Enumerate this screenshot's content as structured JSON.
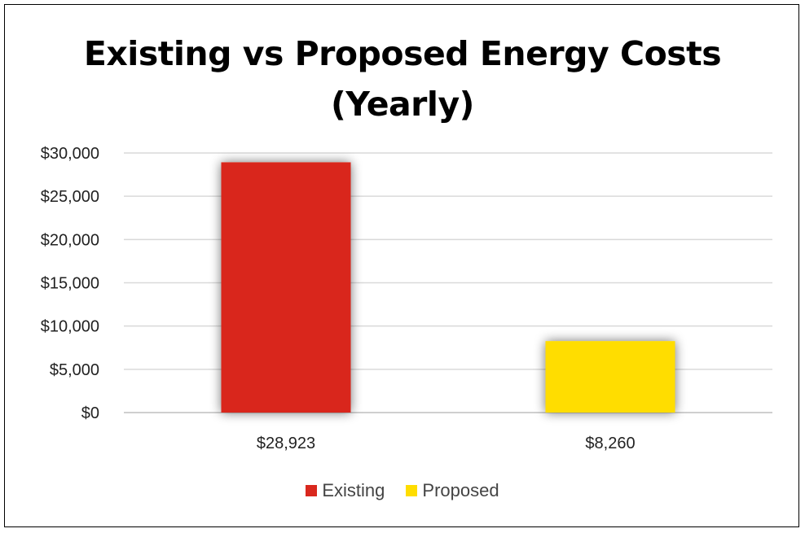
{
  "chart_data": {
    "type": "bar",
    "title_lines": [
      "Existing vs Proposed Energy Costs",
      "(Yearly)"
    ],
    "categories": [
      "$28,923",
      "$8,260"
    ],
    "series": [
      {
        "name": "Existing",
        "values": [
          28923,
          null
        ],
        "color": "#D9281E"
      },
      {
        "name": "Proposed",
        "values": [
          null,
          8260
        ],
        "color": "#FFDD00"
      }
    ],
    "ylim": [
      0,
      30000
    ],
    "yticks": [
      0,
      5000,
      10000,
      15000,
      20000,
      25000,
      30000
    ],
    "ytick_labels": [
      "$0",
      "$5,000",
      "$10,000",
      "$15,000",
      "$20,000",
      "$25,000",
      "$30,000"
    ],
    "grid": true,
    "legend_position": "bottom"
  }
}
